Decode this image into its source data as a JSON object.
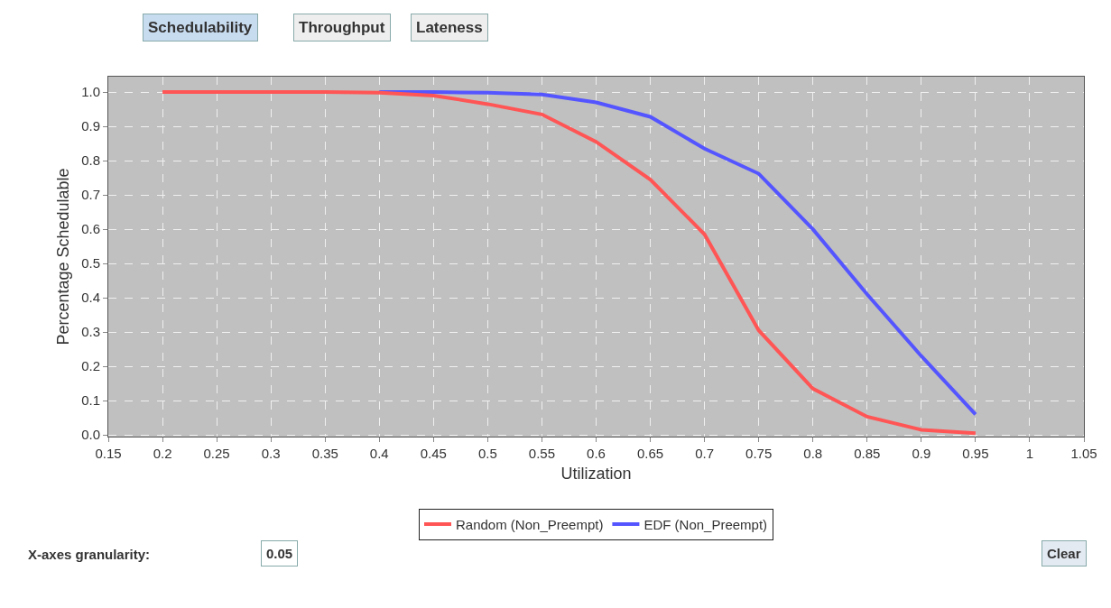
{
  "chart_data": {
    "type": "line",
    "xlabel": "Utilization",
    "ylabel": "Percentage Schedulable",
    "x": [
      0.2,
      0.25,
      0.3,
      0.35,
      0.4,
      0.45,
      0.5,
      0.55,
      0.6,
      0.65,
      0.7,
      0.75,
      0.8,
      0.85,
      0.9,
      0.95
    ],
    "series": [
      {
        "name": "Random (Non_Preempt)",
        "color": "#ff5555",
        "values": [
          1.0,
          1.0,
          1.0,
          1.0,
          0.998,
          0.99,
          0.965,
          0.935,
          0.855,
          0.745,
          0.585,
          0.305,
          0.135,
          0.053,
          0.015,
          0.005
        ]
      },
      {
        "name": "EDF (Non_Preempt)",
        "color": "#5555ff",
        "values": [
          null,
          null,
          null,
          null,
          1.0,
          1.0,
          0.998,
          0.993,
          0.97,
          0.928,
          0.835,
          0.762,
          0.6,
          0.41,
          0.23,
          0.06
        ]
      }
    ],
    "xlim": [
      0.15,
      1.05
    ],
    "xticks": [
      0.15,
      0.2,
      0.25,
      0.3,
      0.35,
      0.4,
      0.45,
      0.5,
      0.55,
      0.6,
      0.65,
      0.7,
      0.75,
      0.8,
      0.85,
      0.9,
      0.95,
      1,
      1.05
    ],
    "ylim": [
      -0.005,
      1.045
    ],
    "yticks": [
      {
        "value": 0,
        "label": "0.0"
      },
      {
        "value": 0.1,
        "label": "0.1"
      },
      {
        "value": 0.2,
        "label": "0.2"
      },
      {
        "value": 0.3,
        "label": "0.3"
      },
      {
        "value": 0.4,
        "label": "0.4"
      },
      {
        "value": 0.5,
        "label": "0.5"
      },
      {
        "value": 0.6,
        "label": "0.6"
      },
      {
        "value": 0.7,
        "label": "0.7"
      },
      {
        "value": 0.8,
        "label": "0.8"
      },
      {
        "value": 0.9,
        "label": "0.9"
      },
      {
        "value": 1.0,
        "label": "1.0"
      }
    ],
    "grid": true,
    "legend": "bottom",
    "marker": "none",
    "line_style": "solid",
    "annotations": [
      "Schedulability",
      "Throughput",
      "Lateness",
      "X-axes granularity:",
      "0.05",
      "Clear"
    ]
  }
}
